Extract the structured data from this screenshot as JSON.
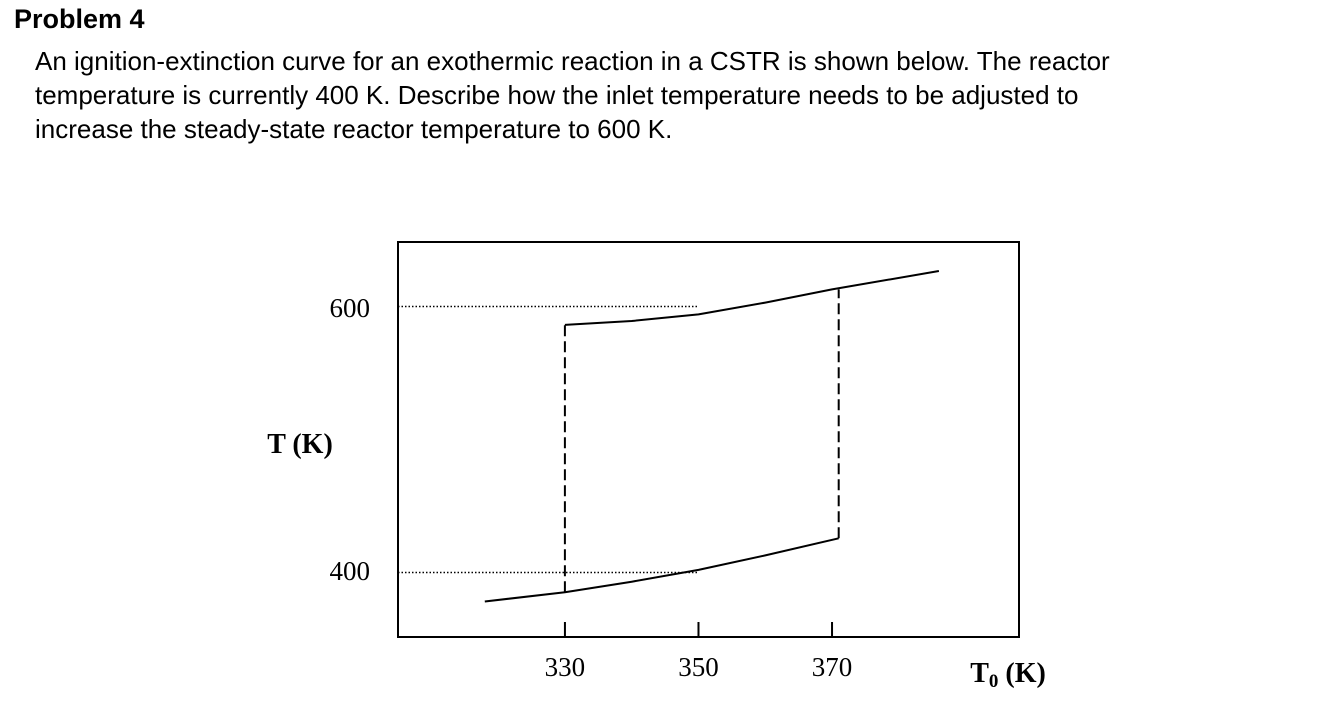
{
  "problem": {
    "title": "Problem 4",
    "text": "An ignition-extinction curve for an exothermic reaction in a CSTR is shown below.  The reactor\ntemperature is currently 400 K.  Describe how the inlet temperature needs to be adjusted to\nincrease the steady-state reactor temperature to 600 K."
  },
  "chart_data": {
    "type": "line",
    "title": "",
    "xlabel_main": "T",
    "xlabel_sub": "0",
    "xlabel_unit": " (K)",
    "ylabel": "T (K)",
    "x_ticks": [
      {
        "value": 330,
        "label": "330"
      },
      {
        "value": 350,
        "label": "350"
      },
      {
        "value": 370,
        "label": "370"
      }
    ],
    "y_ticks": [
      {
        "value": 400,
        "label": "400"
      },
      {
        "value": 600,
        "label": "600"
      }
    ],
    "xlim": [
      305,
      398
    ],
    "ylim": [
      350,
      650
    ],
    "grid": false,
    "series": [
      {
        "key": "lower",
        "style": "solid",
        "x": [
          318,
          330,
          340,
          350,
          360,
          371
        ],
        "y": [
          377,
          384,
          392,
          401,
          412,
          425
        ]
      },
      {
        "key": "upper",
        "style": "solid",
        "x": [
          330,
          340,
          350,
          360,
          370,
          386
        ],
        "y": [
          587,
          590,
          595,
          604,
          614,
          628
        ]
      },
      {
        "key": "ignition",
        "style": "dashed",
        "x": [
          371,
          371
        ],
        "y": [
          425,
          614
        ]
      },
      {
        "key": "extinction",
        "style": "dashed",
        "x": [
          330,
          330
        ],
        "y": [
          384,
          587
        ]
      },
      {
        "key": "ref-600",
        "style": "dotted",
        "x": [
          305,
          350
        ],
        "y": [
          601,
          601
        ]
      },
      {
        "key": "ref-400",
        "style": "dotted",
        "x": [
          305,
          350
        ],
        "y": [
          399,
          399
        ]
      }
    ]
  }
}
